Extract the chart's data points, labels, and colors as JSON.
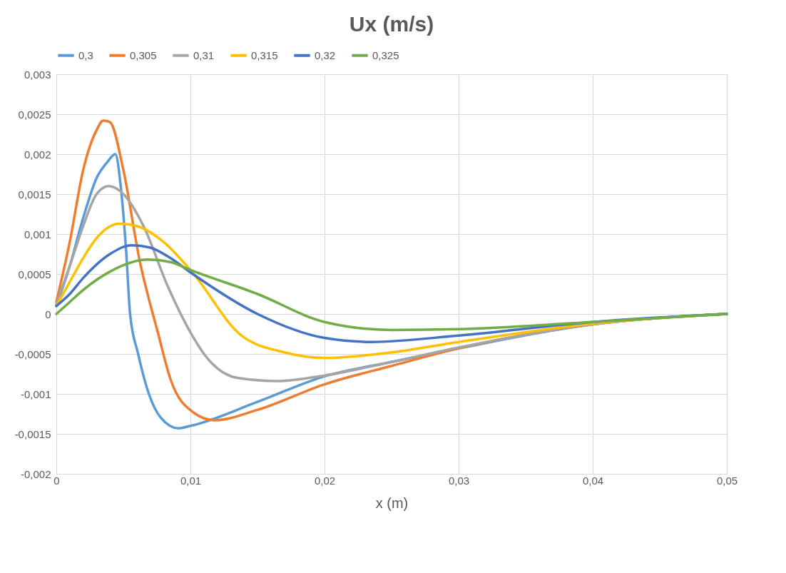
{
  "chart_data": {
    "type": "line",
    "title": "Ux (m/s)",
    "xlabel": "x (m)",
    "legend": "top",
    "grid": true,
    "marker": "none",
    "line_style": "solid",
    "xlim": [
      0,
      0.05
    ],
    "ylim": [
      -0.002,
      0.003
    ],
    "xticks": [
      {
        "value": 0,
        "label": "0"
      },
      {
        "value": 0.01,
        "label": "0,01"
      },
      {
        "value": 0.02,
        "label": "0,02"
      },
      {
        "value": 0.03,
        "label": "0,03"
      },
      {
        "value": 0.04,
        "label": "0,04"
      },
      {
        "value": 0.05,
        "label": "0,05"
      }
    ],
    "yticks": [
      {
        "value": -0.002,
        "label": "-0,002"
      },
      {
        "value": -0.0015,
        "label": "-0,0015"
      },
      {
        "value": -0.001,
        "label": "-0,001"
      },
      {
        "value": -0.0005,
        "label": "-0,0005"
      },
      {
        "value": 0,
        "label": "0"
      },
      {
        "value": 0.0005,
        "label": "0,0005"
      },
      {
        "value": 0.001,
        "label": "0,001"
      },
      {
        "value": 0.0015,
        "label": "0,0015"
      },
      {
        "value": 0.002,
        "label": "0,002"
      },
      {
        "value": 0.0025,
        "label": "0,0025"
      },
      {
        "value": 0.003,
        "label": "0,003"
      }
    ],
    "series": [
      {
        "name": "0,3",
        "color": "#5b9bd5",
        "x": [
          0,
          0.001,
          0.002,
          0.003,
          0.0038,
          0.0044,
          0.0048,
          0.0052,
          0.0055,
          0.0061,
          0.0069,
          0.0078,
          0.0091,
          0.01,
          0.015,
          0.02,
          0.025,
          0.03,
          0.04,
          0.05
        ],
        "values": [
          0.0001,
          0.0006,
          0.0012,
          0.0017,
          0.0019,
          0.002,
          0.0016,
          0.0008,
          0.0,
          -0.0005,
          -0.001,
          -0.0013,
          -0.00143,
          -0.0014,
          -0.0011,
          -0.00078,
          -0.0006,
          -0.00043,
          -0.00013,
          0
        ]
      },
      {
        "name": "0,305",
        "color": "#ed7d31",
        "x": [
          0,
          0.001,
          0.002,
          0.003,
          0.0035,
          0.004,
          0.005,
          0.0062,
          0.0076,
          0.0085,
          0.0102,
          0.0118,
          0.015,
          0.02,
          0.025,
          0.03,
          0.04,
          0.05
        ],
        "values": [
          0.00015,
          0.0009,
          0.0018,
          0.0023,
          0.00242,
          0.0024,
          0.0018,
          0.00068,
          -0.00025,
          -0.00081,
          -0.00123,
          -0.00133,
          -0.0012,
          -0.00088,
          -0.00065,
          -0.00043,
          -0.00013,
          0
        ]
      },
      {
        "name": "0,31",
        "color": "#a5a5a5",
        "x": [
          0,
          0.001,
          0.002,
          0.003,
          0.0039,
          0.005,
          0.0065,
          0.0083,
          0.0099,
          0.0111,
          0.0135,
          0.0165,
          0.02,
          0.025,
          0.03,
          0.04,
          0.05
        ],
        "values": [
          0.00012,
          0.0006,
          0.0011,
          0.0015,
          0.0016,
          0.0015,
          0.0011,
          0.00035,
          -0.0002,
          -0.00052,
          -0.0008,
          -0.00084,
          -0.00077,
          -0.0006,
          -0.00042,
          -0.00013,
          0
        ]
      },
      {
        "name": "0,315",
        "color": "#ffc000",
        "x": [
          0,
          0.001,
          0.002,
          0.003,
          0.0047,
          0.006,
          0.008,
          0.0101,
          0.0138,
          0.017,
          0.02,
          0.025,
          0.03,
          0.04,
          0.05
        ],
        "values": [
          0.0001,
          0.0004,
          0.0007,
          0.00095,
          0.00113,
          0.0011,
          0.0009,
          0.00053,
          -0.00027,
          -0.00048,
          -0.00055,
          -0.00048,
          -0.00035,
          -0.00012,
          0
        ]
      },
      {
        "name": "0,32",
        "color": "#4472c4",
        "x": [
          0,
          0.001,
          0.002,
          0.004,
          0.0056,
          0.007,
          0.0085,
          0.01,
          0.015,
          0.02,
          0.0235,
          0.03,
          0.04,
          0.05
        ],
        "values": [
          0.0001,
          0.00025,
          0.00045,
          0.00075,
          0.00086,
          0.00083,
          0.0007,
          0.00052,
          0,
          -0.0003,
          -0.00035,
          -0.00027,
          -0.0001,
          0
        ]
      },
      {
        "name": "0,325",
        "color": "#70ad47",
        "x": [
          0,
          0.001,
          0.002,
          0.004,
          0.0068,
          0.0085,
          0.01,
          0.015,
          0.02,
          0.025,
          0.03,
          0.04,
          0.05
        ],
        "values": [
          0,
          0.00015,
          0.0003,
          0.00053,
          0.00068,
          0.00065,
          0.00055,
          0.00025,
          -0.0001,
          -0.0002,
          -0.00019,
          -0.0001,
          0
        ]
      }
    ]
  }
}
